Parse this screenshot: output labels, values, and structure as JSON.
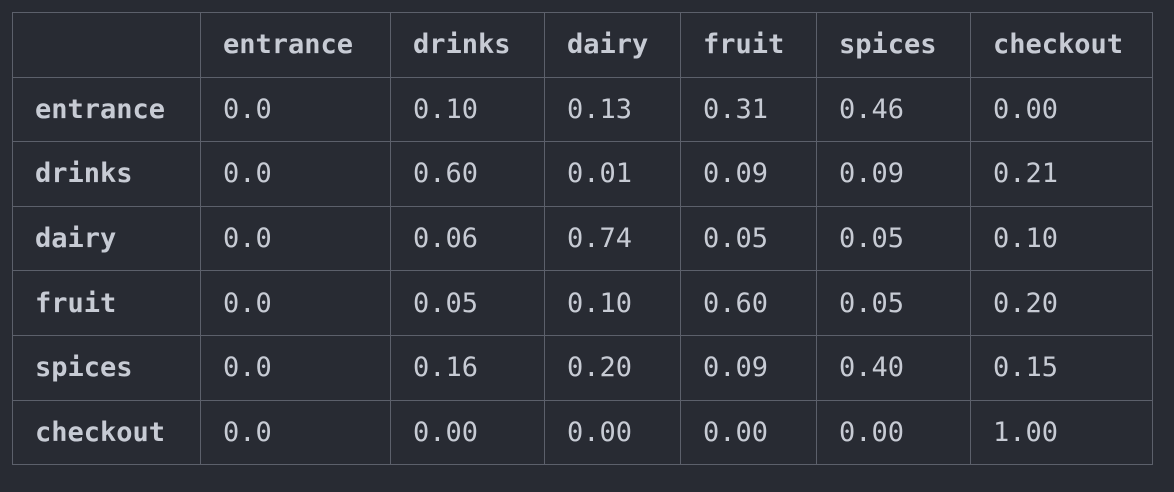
{
  "table": {
    "columns": [
      "",
      "entrance",
      "drinks",
      "dairy",
      "fruit",
      "spices",
      "checkout"
    ],
    "rows": [
      {
        "label": "entrance",
        "values": [
          "0.0",
          "0.10",
          "0.13",
          "0.31",
          "0.46",
          "0.00"
        ]
      },
      {
        "label": "drinks",
        "values": [
          "0.0",
          "0.60",
          "0.01",
          "0.09",
          "0.09",
          "0.21"
        ]
      },
      {
        "label": "dairy",
        "values": [
          "0.0",
          "0.06",
          "0.74",
          "0.05",
          "0.05",
          "0.10"
        ]
      },
      {
        "label": "fruit",
        "values": [
          "0.0",
          "0.05",
          "0.10",
          "0.60",
          "0.05",
          "0.20"
        ]
      },
      {
        "label": "spices",
        "values": [
          "0.0",
          "0.16",
          "0.20",
          "0.09",
          "0.40",
          "0.15"
        ]
      },
      {
        "label": "checkout",
        "values": [
          "0.0",
          "0.00",
          "0.00",
          "0.00",
          "0.00",
          "1.00"
        ]
      }
    ]
  },
  "colors": {
    "background": "#282b33",
    "border": "#5c606b",
    "text": "#c7cbd4"
  }
}
